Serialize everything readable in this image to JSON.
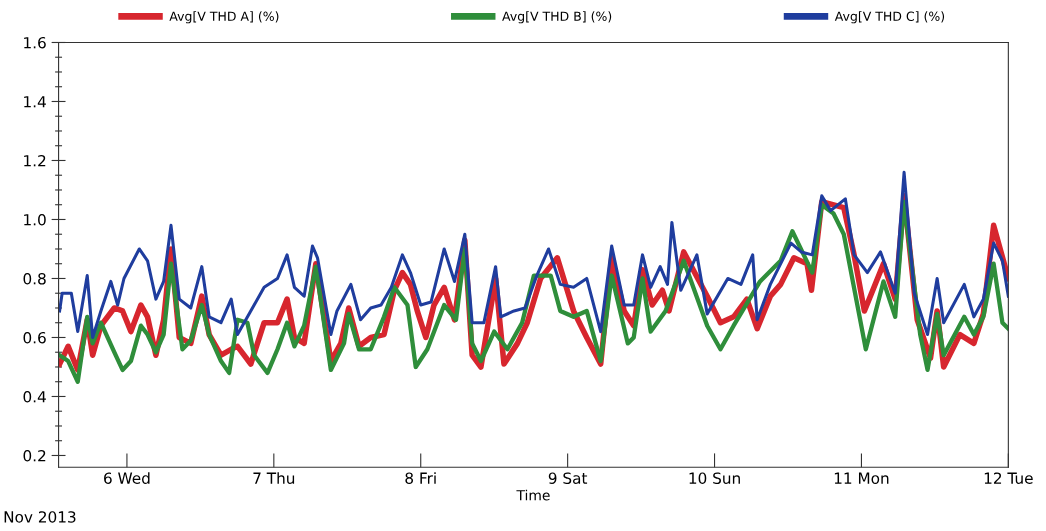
{
  "chart_data": {
    "type": "line",
    "xlabel": "Time",
    "annotations": [
      "Nov 2013"
    ],
    "legend": "top",
    "grid": false,
    "line_style": "solid",
    "xlim": [
      "2013-11-05T12:50",
      "2013-11-12T00:00"
    ],
    "xticks": [
      {
        "value": "2013-11-06",
        "label": "6 Wed"
      },
      {
        "value": "2013-11-07",
        "label": "7 Thu"
      },
      {
        "value": "2013-11-08",
        "label": "8 Fri"
      },
      {
        "value": "2013-11-09",
        "label": "9 Sat"
      },
      {
        "value": "2013-11-10",
        "label": "10 Sun"
      },
      {
        "value": "2013-11-11",
        "label": "11 Mon"
      },
      {
        "value": "2013-11-12",
        "label": "12 Tue"
      }
    ],
    "ylim": [
      0.16,
      1.6
    ],
    "yticks": [
      {
        "value": 0.2,
        "label": "0.2"
      },
      {
        "value": 0.25,
        "label": null
      },
      {
        "value": 0.3,
        "label": null
      },
      {
        "value": 0.35,
        "label": null
      },
      {
        "value": 0.4,
        "label": "0.4"
      },
      {
        "value": 0.45,
        "label": null
      },
      {
        "value": 0.5,
        "label": null
      },
      {
        "value": 0.55,
        "label": null
      },
      {
        "value": 0.6,
        "label": "0.6"
      },
      {
        "value": 0.65,
        "label": null
      },
      {
        "value": 0.7,
        "label": null
      },
      {
        "value": 0.75,
        "label": null
      },
      {
        "value": 0.8,
        "label": "0.8"
      },
      {
        "value": 0.85,
        "label": null
      },
      {
        "value": 0.9,
        "label": null
      },
      {
        "value": 0.95,
        "label": null
      },
      {
        "value": 1.0,
        "label": "1.0"
      },
      {
        "value": 1.05,
        "label": null
      },
      {
        "value": 1.1,
        "label": null
      },
      {
        "value": 1.15,
        "label": null
      },
      {
        "value": 1.2,
        "label": "1.2"
      },
      {
        "value": 1.25,
        "label": null
      },
      {
        "value": 1.3,
        "label": null
      },
      {
        "value": 1.35,
        "label": null
      },
      {
        "value": 1.4,
        "label": "1.4"
      },
      {
        "value": 1.45,
        "label": null
      },
      {
        "value": 1.5,
        "label": null
      },
      {
        "value": 1.55,
        "label": null
      },
      {
        "value": 1.6,
        "label": "1.6"
      }
    ],
    "series": [
      {
        "name": "Avg[V THD A] (%)",
        "color": "#d7262e",
        "x": [
          "2013-11-05T13:00",
          "2013-11-05T14:24",
          "2013-11-05T15:58",
          "2013-11-05T17:31",
          "2013-11-05T18:24",
          "2013-11-05T19:45",
          "2013-11-05T21:56",
          "2013-11-05T23:17",
          "2013-11-06T00:39",
          "2013-11-06T02:17",
          "2013-11-06T03:22",
          "2013-11-06T04:44",
          "2013-11-06T06:00",
          "2013-11-06T07:12",
          "2013-11-06T08:33",
          "2013-11-06T10:26",
          "2013-11-06T12:14",
          "2013-11-06T13:26",
          "2013-11-06T15:22",
          "2013-11-06T17:02",
          "2013-11-06T18:04",
          "2013-11-06T20:14",
          "2013-11-06T22:25",
          "2013-11-07T00:36",
          "2013-11-07T02:10",
          "2013-11-07T03:22",
          "2013-11-07T04:57",
          "2013-11-07T06:52",
          "2013-11-07T09:19",
          "2013-11-07T10:57",
          "2013-11-07T12:14",
          "2013-11-07T13:55",
          "2013-11-07T15:50",
          "2013-11-07T18:00",
          "2013-11-07T19:41",
          "2013-11-07T21:00",
          "2013-11-07T22:19",
          "2013-11-07T23:26",
          "2013-11-08T00:50",
          "2013-11-08T02:10",
          "2013-11-08T03:50",
          "2013-11-08T05:31",
          "2013-11-08T07:12",
          "2013-11-08T08:24",
          "2013-11-08T09:50",
          "2013-11-08T12:14",
          "2013-11-08T13:36",
          "2013-11-08T15:48",
          "2013-11-08T17:24",
          "2013-11-08T19:35",
          "2013-11-08T22:19",
          "2013-11-09T00:58",
          "2013-11-09T03:07",
          "2013-11-09T05:24",
          "2013-11-09T07:12",
          "2013-11-09T09:14",
          "2013-11-09T10:48",
          "2013-11-09T12:14",
          "2013-11-09T13:49",
          "2013-11-09T15:29",
          "2013-11-09T16:34",
          "2013-11-09T18:58",
          "2013-11-09T22:48",
          "2013-11-10T00:58",
          "2013-11-10T03:07",
          "2013-11-10T05:17",
          "2013-11-10T06:58",
          "2013-11-10T09:07",
          "2013-11-10T10:48",
          "2013-11-10T12:58",
          "2013-11-10T15:07",
          "2013-11-10T15:50",
          "2013-11-10T17:31",
          "2013-11-10T21:07",
          "2013-11-10T22:48",
          "2013-11-11T00:29",
          "2013-11-11T03:36",
          "2013-11-11T05:31",
          "2013-11-11T06:58",
          "2013-11-11T09:07",
          "2013-11-11T11:17",
          "2013-11-11T12:22",
          "2013-11-11T13:26",
          "2013-11-11T16:05",
          "2013-11-11T18:22",
          "2013-11-11T19:55",
          "2013-11-11T21:36",
          "2013-11-12T00:00"
        ],
        "values": [
          0.51,
          0.57,
          0.49,
          0.66,
          0.54,
          0.64,
          0.7,
          0.69,
          0.62,
          0.71,
          0.67,
          0.54,
          0.66,
          0.9,
          0.6,
          0.58,
          0.74,
          0.61,
          0.54,
          0.56,
          0.57,
          0.51,
          0.65,
          0.65,
          0.73,
          0.6,
          0.58,
          0.85,
          0.52,
          0.58,
          0.7,
          0.57,
          0.6,
          0.61,
          0.76,
          0.82,
          0.78,
          0.69,
          0.6,
          0.71,
          0.77,
          0.66,
          0.93,
          0.54,
          0.5,
          0.8,
          0.51,
          0.58,
          0.65,
          0.8,
          0.87,
          0.69,
          0.6,
          0.51,
          0.87,
          0.69,
          0.64,
          0.83,
          0.71,
          0.76,
          0.69,
          0.89,
          0.74,
          0.65,
          0.67,
          0.73,
          0.63,
          0.74,
          0.78,
          0.87,
          0.85,
          0.76,
          1.06,
          1.04,
          0.88,
          0.69,
          0.85,
          0.73,
          1.08,
          0.66,
          0.53,
          0.69,
          0.5,
          0.61,
          0.58,
          0.68,
          0.98,
          0.8
        ]
      },
      {
        "name": "Avg[V THD B] (%)",
        "color": "#2f8e3b",
        "x": [
          "2013-11-05T13:00",
          "2013-11-05T14:24",
          "2013-11-05T15:58",
          "2013-11-05T17:31",
          "2013-11-05T18:24",
          "2013-11-05T19:45",
          "2013-11-05T21:56",
          "2013-11-05T23:17",
          "2013-11-06T00:39",
          "2013-11-06T02:17",
          "2013-11-06T03:22",
          "2013-11-06T04:44",
          "2013-11-06T06:00",
          "2013-11-06T07:12",
          "2013-11-06T09:04",
          "2013-11-06T10:26",
          "2013-11-06T12:14",
          "2013-11-06T13:26",
          "2013-11-06T15:22",
          "2013-11-06T16:42",
          "2013-11-06T18:04",
          "2013-11-06T19:41",
          "2013-11-06T20:47",
          "2013-11-06T22:58",
          "2013-11-07T00:36",
          "2013-11-07T02:10",
          "2013-11-07T03:22",
          "2013-11-07T04:57",
          "2013-11-07T06:52",
          "2013-11-07T09:19",
          "2013-11-07T11:28",
          "2013-11-07T12:14",
          "2013-11-07T13:55",
          "2013-11-07T15:50",
          "2013-11-07T18:00",
          "2013-11-07T19:41",
          "2013-11-07T21:50",
          "2013-11-07T23:11",
          "2013-11-08T01:05",
          "2013-11-08T03:50",
          "2013-11-08T05:46",
          "2013-11-08T07:12",
          "2013-11-08T08:24",
          "2013-11-08T09:50",
          "2013-11-08T12:00",
          "2013-11-08T14:10",
          "2013-11-08T16:34",
          "2013-11-08T18:29",
          "2013-11-08T21:14",
          "2013-11-08T22:48",
          "2013-11-09T00:58",
          "2013-11-09T03:07",
          "2013-11-09T05:24",
          "2013-11-09T07:12",
          "2013-11-09T09:50",
          "2013-11-09T10:48",
          "2013-11-09T12:14",
          "2013-11-09T13:34",
          "2013-11-09T16:00",
          "2013-11-09T18:58",
          "2013-11-09T22:48",
          "2013-11-10T00:58",
          "2013-11-10T03:07",
          "2013-11-10T07:26",
          "2013-11-10T10:48",
          "2013-11-10T12:43",
          "2013-11-10T15:58",
          "2013-11-10T17:31",
          "2013-11-10T19:26",
          "2013-11-10T21:07",
          "2013-11-11T00:43",
          "2013-11-11T03:36",
          "2013-11-11T05:31",
          "2013-11-11T06:58",
          "2013-11-11T09:36",
          "2013-11-11T10:48",
          "2013-11-11T12:22",
          "2013-11-11T13:26",
          "2013-11-11T16:48",
          "2013-11-11T18:22",
          "2013-11-11T19:55",
          "2013-11-11T21:36",
          "2013-11-11T23:02",
          "2013-11-12T00:00"
        ],
        "values": [
          0.54,
          0.52,
          0.45,
          0.67,
          0.58,
          0.65,
          0.55,
          0.49,
          0.52,
          0.64,
          0.61,
          0.55,
          0.61,
          0.85,
          0.56,
          0.59,
          0.71,
          0.61,
          0.52,
          0.48,
          0.66,
          0.65,
          0.54,
          0.48,
          0.56,
          0.65,
          0.57,
          0.64,
          0.84,
          0.49,
          0.58,
          0.68,
          0.56,
          0.56,
          0.67,
          0.77,
          0.71,
          0.5,
          0.56,
          0.71,
          0.66,
          0.9,
          0.58,
          0.52,
          0.62,
          0.56,
          0.65,
          0.81,
          0.81,
          0.69,
          0.67,
          0.69,
          0.52,
          0.81,
          0.58,
          0.6,
          0.8,
          0.62,
          0.69,
          0.86,
          0.64,
          0.56,
          0.64,
          0.79,
          0.86,
          0.96,
          0.82,
          1.05,
          1.02,
          0.95,
          0.56,
          0.79,
          0.67,
          1.06,
          0.61,
          0.49,
          0.68,
          0.54,
          0.67,
          0.61,
          0.67,
          0.85,
          0.65,
          0.63
        ]
      },
      {
        "name": "Avg[V THD C] (%)",
        "color": "#1f3d9e",
        "x": [
          "2013-11-05T13:00",
          "2013-11-05T13:25",
          "2013-11-05T14:55",
          "2013-11-05T15:58",
          "2013-11-05T17:31",
          "2013-11-05T18:24",
          "2013-11-05T19:45",
          "2013-11-05T21:22",
          "2013-11-05T22:29",
          "2013-11-05T23:31",
          "2013-11-06T02:01",
          "2013-11-06T03:22",
          "2013-11-06T04:44",
          "2013-11-06T06:00",
          "2013-11-06T07:12",
          "2013-11-06T08:33",
          "2013-11-06T10:26",
          "2013-11-06T12:14",
          "2013-11-06T13:26",
          "2013-11-06T15:22",
          "2013-11-06T17:02",
          "2013-11-06T18:04",
          "2013-11-06T20:47",
          "2013-11-06T22:25",
          "2013-11-07T00:36",
          "2013-11-07T02:10",
          "2013-11-07T03:22",
          "2013-11-07T04:57",
          "2013-11-07T06:19",
          "2013-11-07T07:08",
          "2013-11-07T09:19",
          "2013-11-07T10:19",
          "2013-11-07T12:35",
          "2013-11-07T14:10",
          "2013-11-07T15:50",
          "2013-11-07T17:31",
          "2013-11-07T19:12",
          "2013-11-07T21:00",
          "2013-11-07T22:19",
          "2013-11-08T00:00",
          "2013-11-08T01:41",
          "2013-11-08T03:50",
          "2013-11-08T05:31",
          "2013-11-08T07:12",
          "2013-11-08T08:24",
          "2013-11-08T10:19",
          "2013-11-08T12:14",
          "2013-11-08T13:05",
          "2013-11-08T15:14",
          "2013-11-08T17:02",
          "2013-11-08T18:58",
          "2013-11-08T20:53",
          "2013-11-08T22:48",
          "2013-11-09T00:58",
          "2013-11-09T03:07",
          "2013-11-09T05:24",
          "2013-11-09T07:12",
          "2013-11-09T09:14",
          "2013-11-09T10:48",
          "2013-11-09T12:14",
          "2013-11-09T13:34",
          "2013-11-09T15:07",
          "2013-11-09T16:19",
          "2013-11-09T17:02",
          "2013-11-09T18:29",
          "2013-11-09T21:07",
          "2013-11-09T22:48",
          "2013-11-10T02:10",
          "2013-11-10T04:19",
          "2013-11-10T06:14",
          "2013-11-10T06:58",
          "2013-11-10T09:07",
          "2013-11-10T12:29",
          "2013-11-10T14:10",
          "2013-11-10T15:58",
          "2013-11-10T17:31",
          "2013-11-10T18:58",
          "2013-11-10T21:22",
          "2013-11-10T22:48",
          "2013-11-11T00:58",
          "2013-11-11T03:07",
          "2013-11-11T05:31",
          "2013-11-11T06:58",
          "2013-11-11T08:38",
          "2013-11-11T10:48",
          "2013-11-11T12:22",
          "2013-11-11T13:26",
          "2013-11-11T16:48",
          "2013-11-11T18:22",
          "2013-11-11T19:55",
          "2013-11-11T21:36",
          "2013-11-11T23:02",
          "2013-11-12T00:00"
        ],
        "values": [
          0.69,
          0.75,
          0.75,
          0.62,
          0.81,
          0.6,
          0.69,
          0.79,
          0.71,
          0.8,
          0.9,
          0.86,
          0.73,
          0.79,
          0.98,
          0.73,
          0.7,
          0.84,
          0.67,
          0.65,
          0.73,
          0.61,
          0.71,
          0.77,
          0.8,
          0.88,
          0.77,
          0.74,
          0.91,
          0.87,
          0.61,
          0.69,
          0.78,
          0.66,
          0.7,
          0.71,
          0.77,
          0.88,
          0.82,
          0.71,
          0.72,
          0.9,
          0.79,
          0.95,
          0.65,
          0.65,
          0.84,
          0.67,
          0.69,
          0.7,
          0.81,
          0.9,
          0.78,
          0.77,
          0.8,
          0.62,
          0.91,
          0.71,
          0.71,
          0.88,
          0.77,
          0.84,
          0.78,
          0.99,
          0.76,
          0.88,
          0.68,
          0.8,
          0.78,
          0.88,
          0.66,
          0.78,
          0.92,
          0.89,
          0.88,
          1.08,
          1.03,
          1.07,
          0.88,
          0.82,
          0.89,
          0.75,
          1.16,
          0.75,
          0.61,
          0.8,
          0.65,
          0.78,
          0.67,
          0.73,
          0.92,
          0.86,
          0.74
        ]
      }
    ]
  }
}
